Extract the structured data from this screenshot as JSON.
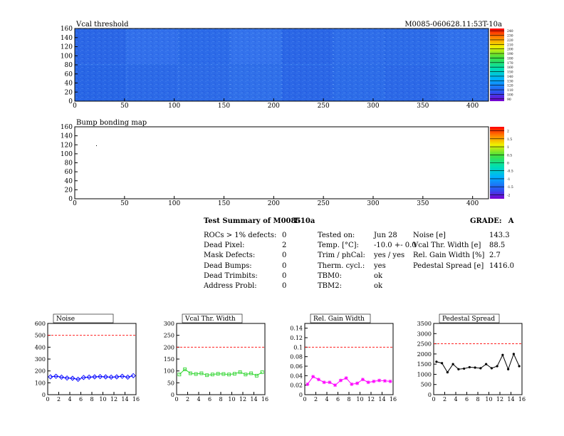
{
  "header": {
    "map_title": "Vcal threshold",
    "module_id": "M0085-060628.11:53T-10a",
    "bump_title": "Bump bonding map"
  },
  "colors": {
    "map_fill": "#2d6dea",
    "map_fill_dark": "#1747d8",
    "noise_line": "#0000ff",
    "width_line": "#35d635",
    "gain_line": "#ff00ff",
    "pedestal_line": "#000000",
    "limit_line": "#ff0000"
  },
  "summary": {
    "title": "Test Summary of M0085",
    "title_suffix": "T-10a",
    "grade_label": "GRADE:",
    "grade_value": "A",
    "defects": [
      {
        "label": "ROCs > 1% defects:",
        "value": "0"
      },
      {
        "label": "Dead Pixel:",
        "value": "2"
      },
      {
        "label": "Mask Defects:",
        "value": "0"
      },
      {
        "label": "Dead Bumps:",
        "value": "0"
      },
      {
        "label": "Dead Trimbits:",
        "value": "0"
      },
      {
        "label": "Address Probl:",
        "value": "0"
      }
    ],
    "conditions": [
      {
        "label": "Tested on:",
        "value": "Jun 28"
      },
      {
        "label": "Temp. [°C]:",
        "value": "-10.0 +- 0.0"
      },
      {
        "label": "Trim / phCal:",
        "value": "yes / yes"
      },
      {
        "label": "Therm. cycl.:",
        "value": "yes"
      },
      {
        "label": "TBM0:",
        "value": "ok"
      },
      {
        "label": "TBM2:",
        "value": "ok"
      }
    ],
    "results": [
      {
        "label": "Noise [e]",
        "value": "143.3"
      },
      {
        "label": "Vcal Thr. Width [e]",
        "value": "88.5"
      },
      {
        "label": "Rel. Gain Width [%]",
        "value": "2.7"
      },
      {
        "label": "Pedestal Spread [e]",
        "value": "1416.0"
      }
    ]
  },
  "chart_data": [
    {
      "type": "heatmap",
      "title": "Vcal threshold",
      "xlim": [
        0,
        416
      ],
      "ylim": [
        0,
        160
      ],
      "x_ticks": [
        0,
        50,
        100,
        150,
        200,
        250,
        300,
        350,
        400
      ],
      "y_ticks": [
        0,
        20,
        40,
        60,
        80,
        100,
        120,
        140,
        160
      ],
      "color_scale_ticks": [
        "90",
        "100",
        "110",
        "120",
        "130",
        "140",
        "150",
        "160",
        "170",
        "180",
        "190",
        "200",
        "210",
        "220",
        "230",
        "240"
      ]
    },
    {
      "type": "heatmap",
      "title": "Bump bonding map",
      "xlim": [
        0,
        416
      ],
      "ylim": [
        0,
        160
      ],
      "x_ticks": [
        0,
        50,
        100,
        150,
        200,
        250,
        300,
        350,
        400
      ],
      "y_ticks": [
        0,
        20,
        40,
        60,
        80,
        100,
        120,
        140,
        160
      ],
      "color_scale_ticks": [
        "-2",
        "-1.5",
        "-1",
        "-0.5",
        "0",
        "0.5",
        "1",
        "1.5",
        "2"
      ]
    },
    {
      "type": "line",
      "title": "Noise",
      "x": [
        0,
        1,
        2,
        3,
        4,
        5,
        6,
        7,
        8,
        9,
        10,
        11,
        12,
        13,
        14,
        15
      ],
      "values": [
        150,
        155,
        148,
        140,
        138,
        130,
        145,
        148,
        150,
        152,
        150,
        148,
        150,
        155,
        148,
        160
      ],
      "limit": 500,
      "xlim": [
        0,
        16
      ],
      "ylim": [
        0,
        600
      ],
      "x_ticks": [
        0,
        2,
        4,
        6,
        8,
        10,
        12,
        14,
        16
      ],
      "y_ticks": [
        0,
        100,
        200,
        300,
        400,
        500,
        600
      ]
    },
    {
      "type": "line",
      "title": "Vcal Thr. Width",
      "x": [
        0,
        1,
        2,
        3,
        4,
        5,
        6,
        7,
        8,
        9,
        10,
        11,
        12,
        13,
        14,
        15
      ],
      "values": [
        85,
        107,
        90,
        87,
        90,
        82,
        85,
        88,
        87,
        85,
        88,
        95,
        85,
        90,
        80,
        95
      ],
      "limit": 200,
      "xlim": [
        0,
        16
      ],
      "ylim": [
        0,
        300
      ],
      "x_ticks": [
        0,
        2,
        4,
        6,
        8,
        10,
        12,
        14,
        16
      ],
      "y_ticks": [
        0,
        50,
        100,
        150,
        200,
        250,
        300
      ]
    },
    {
      "type": "line",
      "title": "Rel. Gain Width",
      "x": [
        0,
        1,
        2,
        3,
        4,
        5,
        6,
        7,
        8,
        9,
        10,
        11,
        12,
        13,
        14,
        15
      ],
      "values": [
        0.022,
        0.038,
        0.032,
        0.026,
        0.026,
        0.02,
        0.03,
        0.035,
        0.022,
        0.024,
        0.032,
        0.026,
        0.028,
        0.03,
        0.029,
        0.028
      ],
      "limit": 0.1,
      "xlim": [
        0,
        16
      ],
      "ylim": [
        0,
        0.15
      ],
      "x_ticks": [
        0,
        2,
        4,
        6,
        8,
        10,
        12,
        14,
        16
      ],
      "y_ticks": [
        "0",
        "0.02",
        "0.04",
        "0.06",
        "0.08",
        "0.1",
        "0.12",
        "0.14"
      ]
    },
    {
      "type": "line",
      "title": "Pedestal Spread",
      "x": [
        0,
        1,
        2,
        3,
        4,
        5,
        6,
        7,
        8,
        9,
        10,
        11,
        12,
        13,
        14,
        15
      ],
      "values": [
        1620,
        1550,
        1100,
        1500,
        1250,
        1280,
        1350,
        1330,
        1300,
        1500,
        1300,
        1400,
        1950,
        1250,
        2000,
        1400
      ],
      "limit": 2500,
      "xlim": [
        0,
        16
      ],
      "ylim": [
        0,
        3500
      ],
      "x_ticks": [
        0,
        2,
        4,
        6,
        8,
        10,
        12,
        14,
        16
      ],
      "y_ticks": [
        0,
        500,
        1000,
        1500,
        2000,
        2500,
        3000,
        3500
      ]
    }
  ]
}
